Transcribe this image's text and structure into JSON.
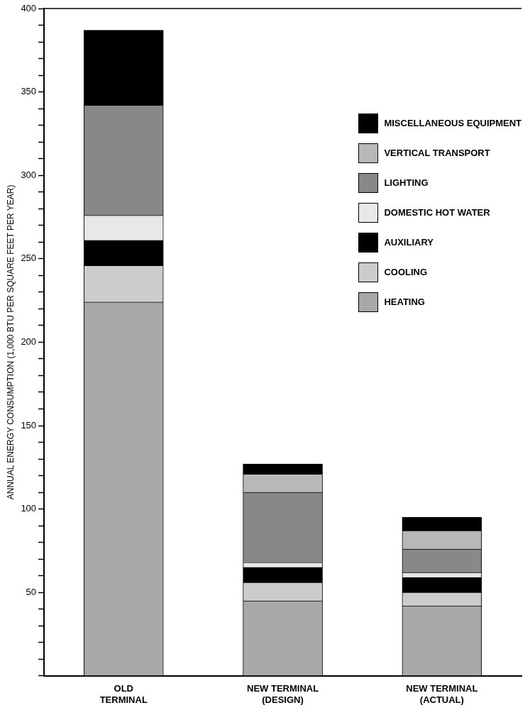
{
  "chart_data": {
    "type": "bar",
    "stacked": true,
    "ylabel": "ANNUAL ENERGY CONSUMPTION (1,000 BTU PER SQUARE FEET PER YEAR)",
    "categories": [
      "OLD TERMINAL",
      "NEW TERMINAL (DESIGN)",
      "NEW TERMINAL (ACTUAL)"
    ],
    "series": [
      {
        "name": "HEATING",
        "color": "#a8a8a8",
        "values": [
          224,
          45,
          42
        ]
      },
      {
        "name": "COOLING",
        "color": "#cccccc",
        "values": [
          22,
          11,
          8
        ]
      },
      {
        "name": "AUXILIARY",
        "color": "#000000",
        "values": [
          15,
          9,
          9
        ]
      },
      {
        "name": "DOMESTIC HOT WATER",
        "color": "#e8e8e8",
        "values": [
          15,
          3,
          3
        ]
      },
      {
        "name": "LIGHTING",
        "color": "#888888",
        "values": [
          66,
          42,
          14
        ]
      },
      {
        "name": "VERTICAL TRANSPORT",
        "color": "#b8b8b8",
        "values": [
          0,
          11,
          11
        ]
      },
      {
        "name": "MISCELLANEOUS EQUIPMENT",
        "color": "#000000",
        "values": [
          45,
          6,
          8
        ]
      }
    ],
    "ylim": [
      0,
      400
    ],
    "yticks": [
      {
        "value": 0,
        "label": null
      },
      {
        "value": 10,
        "label": null
      },
      {
        "value": 20,
        "label": null
      },
      {
        "value": 30,
        "label": null
      },
      {
        "value": 40,
        "label": null
      },
      50,
      {
        "value": 60,
        "label": null
      },
      {
        "value": 70,
        "label": null
      },
      {
        "value": 80,
        "label": null
      },
      {
        "value": 90,
        "label": null
      },
      100,
      {
        "value": 110,
        "label": null
      },
      {
        "value": 120,
        "label": null
      },
      {
        "value": 130,
        "label": null
      },
      {
        "value": 140,
        "label": null
      },
      150,
      {
        "value": 160,
        "label": null
      },
      {
        "value": 170,
        "label": null
      },
      {
        "value": 180,
        "label": null
      },
      {
        "value": 190,
        "label": null
      },
      200,
      {
        "value": 210,
        "label": null
      },
      {
        "value": 220,
        "label": null
      },
      {
        "value": 230,
        "label": null
      },
      {
        "value": 240,
        "label": null
      },
      250,
      {
        "value": 260,
        "label": null
      },
      {
        "value": 270,
        "label": null
      },
      {
        "value": 280,
        "label": null
      },
      {
        "value": 290,
        "label": null
      },
      300,
      {
        "value": 310,
        "label": null
      },
      {
        "value": 320,
        "label": null
      },
      {
        "value": 330,
        "label": null
      },
      {
        "value": 340,
        "label": null
      },
      350,
      {
        "value": 360,
        "label": null
      },
      {
        "value": 370,
        "label": null
      },
      {
        "value": 380,
        "label": null
      },
      {
        "value": 390,
        "label": null
      },
      400
    ],
    "grid": false,
    "legend": "right"
  }
}
